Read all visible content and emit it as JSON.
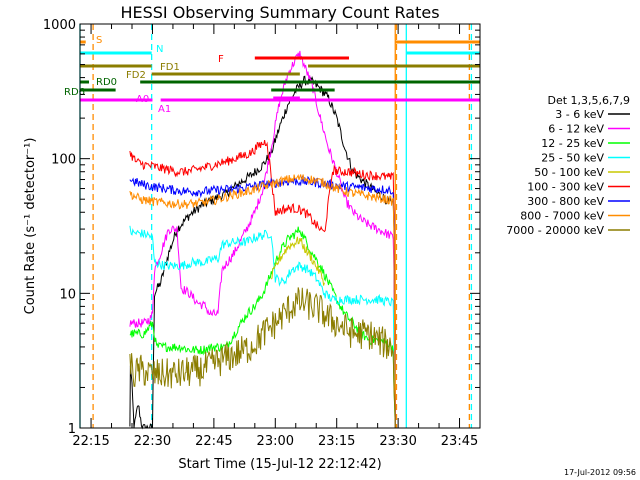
{
  "chart_data": {
    "type": "line",
    "title": "HESSI Observing Summary Count Rates",
    "xlabel": "Start Time (15-Jul-12 22:12:42)",
    "ylabel": "Count Rate (s⁻¹ detector⁻¹)",
    "yscale": "log",
    "ylim": [
      1,
      1000
    ],
    "xlim_minutes": [
      -2.7,
      95
    ],
    "x_ticks": [
      {
        "label": "22:15",
        "min": 0
      },
      {
        "label": "22:30",
        "min": 15
      },
      {
        "label": "22:45",
        "min": 30
      },
      {
        "label": "23:00",
        "min": 45
      },
      {
        "label": "23:15",
        "min": 60
      },
      {
        "label": "23:30",
        "min": 75
      },
      {
        "label": "23:45",
        "min": 90
      }
    ],
    "y_ticks": [
      {
        "label": "1",
        "value": 1
      },
      {
        "label": "10",
        "value": 10
      },
      {
        "label": "100",
        "value": 100
      },
      {
        "label": "1000",
        "value": 1000
      }
    ],
    "legend_title": "Det 1,3,5,6,7,9",
    "legend_position": "right",
    "series": [
      {
        "name": "3 - 6 keV",
        "color": "#000000",
        "points": [
          [
            9.5,
            1
          ],
          [
            9.6,
            3
          ],
          [
            10,
            2
          ],
          [
            10.5,
            1
          ],
          [
            11.5,
            1.5
          ],
          [
            12.5,
            1
          ],
          [
            13.5,
            1
          ],
          [
            14.5,
            1
          ],
          [
            15,
            1
          ],
          [
            15.5,
            10
          ],
          [
            17,
            12
          ],
          [
            19,
            20
          ],
          [
            21,
            30
          ],
          [
            24,
            38
          ],
          [
            27,
            45
          ],
          [
            30,
            50
          ],
          [
            33,
            55
          ],
          [
            36,
            65
          ],
          [
            39,
            75
          ],
          [
            42,
            90
          ],
          [
            44,
            110
          ],
          [
            46,
            170
          ],
          [
            48,
            250
          ],
          [
            50,
            320
          ],
          [
            52,
            380
          ],
          [
            54,
            370
          ],
          [
            56,
            330
          ],
          [
            58,
            280
          ],
          [
            60,
            200
          ],
          [
            62,
            120
          ],
          [
            64,
            80
          ],
          [
            66,
            70
          ],
          [
            68,
            62
          ],
          [
            70,
            55
          ],
          [
            72,
            50
          ],
          [
            73.8,
            45
          ],
          [
            74,
            30
          ],
          [
            74.3,
            1
          ]
        ]
      },
      {
        "name": "6 - 12 keV",
        "color": "#ff00ff",
        "points": [
          [
            9.5,
            6
          ],
          [
            13,
            6
          ],
          [
            14.5,
            6.5
          ],
          [
            15,
            7
          ],
          [
            15.5,
            15
          ],
          [
            17,
            20
          ],
          [
            19,
            30
          ],
          [
            21,
            30
          ],
          [
            22,
            11
          ],
          [
            24,
            10
          ],
          [
            26,
            8.5
          ],
          [
            28,
            8
          ],
          [
            29,
            7
          ],
          [
            31,
            7
          ],
          [
            32,
            15
          ],
          [
            35,
            20
          ],
          [
            38,
            30
          ],
          [
            40,
            40
          ],
          [
            42,
            60
          ],
          [
            44,
            120
          ],
          [
            46,
            260
          ],
          [
            48,
            420
          ],
          [
            50,
            550
          ],
          [
            51,
            600
          ],
          [
            52,
            500
          ],
          [
            54,
            350
          ],
          [
            56,
            200
          ],
          [
            58,
            120
          ],
          [
            60,
            80
          ],
          [
            62,
            50
          ],
          [
            64,
            40
          ],
          [
            66,
            35
          ],
          [
            68,
            32
          ],
          [
            70,
            30
          ],
          [
            72,
            28
          ],
          [
            73.8,
            26
          ],
          [
            74,
            15
          ],
          [
            74.3,
            1
          ]
        ]
      },
      {
        "name": "12 - 25 keV",
        "color": "#00ff00",
        "points": [
          [
            9.5,
            5
          ],
          [
            10,
            5
          ],
          [
            13,
            5
          ],
          [
            15,
            6
          ],
          [
            16,
            4
          ],
          [
            18,
            4
          ],
          [
            22,
            4
          ],
          [
            24,
            3.8
          ],
          [
            27,
            3.8
          ],
          [
            30,
            4
          ],
          [
            33,
            4
          ],
          [
            35,
            5
          ],
          [
            38,
            7
          ],
          [
            40,
            8
          ],
          [
            42,
            10
          ],
          [
            44,
            14
          ],
          [
            46,
            20
          ],
          [
            48,
            25
          ],
          [
            50,
            28
          ],
          [
            51,
            30
          ],
          [
            52,
            26
          ],
          [
            54,
            20
          ],
          [
            56,
            16
          ],
          [
            58,
            12
          ],
          [
            60,
            9
          ],
          [
            62,
            7
          ],
          [
            64,
            6
          ],
          [
            66,
            5
          ],
          [
            68,
            4.5
          ],
          [
            70,
            4.5
          ],
          [
            72,
            4.3
          ],
          [
            73.8,
            4
          ],
          [
            74,
            2
          ],
          [
            74.3,
            1
          ]
        ]
      },
      {
        "name": "25 - 50 keV",
        "color": "#00ffff",
        "points": [
          [
            9.5,
            30
          ],
          [
            10,
            28
          ],
          [
            12,
            28
          ],
          [
            14,
            27
          ],
          [
            15,
            26
          ],
          [
            15.5,
            17
          ],
          [
            18,
            16
          ],
          [
            22,
            16
          ],
          [
            25,
            17
          ],
          [
            28,
            17
          ],
          [
            30,
            18
          ],
          [
            31,
            18
          ],
          [
            32,
            23
          ],
          [
            35,
            24
          ],
          [
            38,
            24
          ],
          [
            40,
            26
          ],
          [
            42,
            27
          ],
          [
            44,
            28
          ],
          [
            45,
            13
          ],
          [
            47,
            12
          ],
          [
            49,
            15
          ],
          [
            51,
            16
          ],
          [
            53,
            15
          ],
          [
            55,
            13
          ],
          [
            57,
            10
          ],
          [
            59,
            9
          ],
          [
            61,
            9
          ],
          [
            63,
            9
          ],
          [
            65,
            9
          ],
          [
            67,
            9
          ],
          [
            70,
            9
          ],
          [
            73.8,
            8.5
          ],
          [
            74,
            4
          ],
          [
            74.3,
            1
          ]
        ]
      },
      {
        "name": "50 - 100 keV",
        "color": "#c8c800",
        "points": [
          [
            44,
            13
          ],
          [
            46,
            18
          ],
          [
            48,
            22
          ],
          [
            50,
            24
          ],
          [
            51,
            25
          ],
          [
            52,
            22
          ],
          [
            54,
            18
          ],
          [
            56,
            14
          ],
          [
            57,
            12
          ]
        ]
      },
      {
        "name": "100 - 300 keV",
        "color": "#ff0000",
        "points": [
          [
            9.5,
            110
          ],
          [
            11,
            95
          ],
          [
            13,
            90
          ],
          [
            15,
            88
          ],
          [
            17,
            85
          ],
          [
            19,
            83
          ],
          [
            21,
            80
          ],
          [
            23,
            80
          ],
          [
            25,
            82
          ],
          [
            27,
            85
          ],
          [
            29,
            88
          ],
          [
            31,
            92
          ],
          [
            33,
            95
          ],
          [
            35,
            100
          ],
          [
            37,
            105
          ],
          [
            39,
            110
          ],
          [
            41,
            125
          ],
          [
            43,
            135
          ],
          [
            45,
            40
          ],
          [
            47,
            42
          ],
          [
            49,
            43
          ],
          [
            51,
            42
          ],
          [
            53,
            38
          ],
          [
            55,
            32
          ],
          [
            57,
            28
          ],
          [
            59,
            82
          ],
          [
            61,
            80
          ],
          [
            63,
            80
          ],
          [
            65,
            78
          ],
          [
            67,
            76
          ],
          [
            69,
            75
          ],
          [
            71,
            74
          ],
          [
            73.8,
            72
          ],
          [
            74,
            40
          ],
          [
            74.3,
            1
          ]
        ]
      },
      {
        "name": "300 - 800 keV",
        "color": "#0000ff",
        "points": [
          [
            9.5,
            70
          ],
          [
            12,
            65
          ],
          [
            15,
            62
          ],
          [
            18,
            60
          ],
          [
            21,
            58
          ],
          [
            24,
            57
          ],
          [
            27,
            57
          ],
          [
            30,
            58
          ],
          [
            33,
            59
          ],
          [
            36,
            60
          ],
          [
            39,
            62
          ],
          [
            42,
            64
          ],
          [
            45,
            66
          ],
          [
            48,
            68
          ],
          [
            51,
            68
          ],
          [
            54,
            67
          ],
          [
            57,
            65
          ],
          [
            60,
            63
          ],
          [
            63,
            62
          ],
          [
            66,
            61
          ],
          [
            69,
            60
          ],
          [
            72,
            59
          ],
          [
            73.8,
            58
          ],
          [
            74,
            30
          ],
          [
            74.3,
            1
          ]
        ]
      },
      {
        "name": "800 - 7000 keV",
        "color": "#ff8c00",
        "points": [
          [
            9.5,
            55
          ],
          [
            12,
            50
          ],
          [
            15,
            48
          ],
          [
            18,
            47
          ],
          [
            21,
            46
          ],
          [
            24,
            46
          ],
          [
            27,
            47
          ],
          [
            30,
            49
          ],
          [
            33,
            52
          ],
          [
            36,
            55
          ],
          [
            39,
            58
          ],
          [
            42,
            62
          ],
          [
            45,
            66
          ],
          [
            48,
            70
          ],
          [
            51,
            72
          ],
          [
            54,
            70
          ],
          [
            57,
            66
          ],
          [
            60,
            60
          ],
          [
            63,
            56
          ],
          [
            66,
            54
          ],
          [
            69,
            52
          ],
          [
            72,
            50
          ],
          [
            73.8,
            48
          ],
          [
            74,
            25
          ],
          [
            74.3,
            1
          ]
        ]
      },
      {
        "name": "7000 - 20000 keV",
        "color": "#8b7d00",
        "points": [
          [
            9.5,
            3
          ],
          [
            10.5,
            2.5
          ],
          [
            12,
            2.7
          ],
          [
            15,
            2.5
          ],
          [
            18,
            2.5
          ],
          [
            21,
            2.5
          ],
          [
            24,
            2.6
          ],
          [
            27,
            2.7
          ],
          [
            30,
            3
          ],
          [
            33,
            3.3
          ],
          [
            36,
            3.6
          ],
          [
            39,
            4
          ],
          [
            42,
            5
          ],
          [
            45,
            6
          ],
          [
            48,
            7.5
          ],
          [
            50,
            8.5
          ],
          [
            52,
            8.5
          ],
          [
            54,
            8
          ],
          [
            56,
            7.5
          ],
          [
            58,
            6.5
          ],
          [
            60,
            6
          ],
          [
            62,
            5.5
          ],
          [
            64,
            5
          ],
          [
            66,
            5
          ],
          [
            68,
            5
          ],
          [
            70,
            4.5
          ],
          [
            72,
            4.2
          ],
          [
            73.8,
            4
          ],
          [
            74,
            2
          ],
          [
            74.3,
            1
          ]
        ]
      }
    ],
    "state_flags": [
      {
        "label": "S",
        "color": "#ff8c00",
        "level": 1,
        "spans": [
          [
            -2.7,
            -1.3
          ],
          [
            74.3,
            95
          ]
        ]
      },
      {
        "label": "N",
        "color": "#00ffff",
        "level": 2,
        "spans": [
          [
            -2.7,
            14.8
          ],
          [
            77,
            95
          ]
        ]
      },
      {
        "label": "F",
        "color": "#ff0000",
        "level": 3,
        "spans": [
          [
            40,
            63
          ]
        ]
      },
      {
        "label": "FD1",
        "color": "#8b7d00",
        "level": 4,
        "spans": [
          [
            -2.7,
            14.8
          ],
          [
            53,
            95
          ]
        ]
      },
      {
        "label": "FD2",
        "color": "#8b7d00",
        "level": 5,
        "spans": [
          [
            14.8,
            51
          ]
        ]
      },
      {
        "label": "RD0",
        "color": "#006400",
        "level": 6,
        "spans": [
          [
            -2.7,
            -0.5
          ],
          [
            12,
            95
          ]
        ]
      },
      {
        "label": "RD6",
        "color": "#006400",
        "level": 7,
        "spans": [
          [
            -2.7,
            6
          ],
          [
            44,
            59.5
          ]
        ]
      },
      {
        "label": "A0",
        "color": "#ff00ff",
        "level": 8,
        "spans": [
          [
            44.5,
            51
          ]
        ]
      },
      {
        "label": "A1",
        "color": "#ff00ff",
        "level": 9,
        "spans": [
          [
            -2.7,
            15
          ],
          [
            17,
            95
          ]
        ]
      }
    ],
    "markers": [
      {
        "color": "#00ffff",
        "style": "solid",
        "min": -2.7
      },
      {
        "color": "#ff8c00",
        "style": "dashed",
        "min": 0.5
      },
      {
        "color": "#00ffff",
        "style": "dashed",
        "min": 14.8
      },
      {
        "color": "#ff8c00",
        "style": "solid",
        "min": 74.3
      },
      {
        "color": "#ff8c00",
        "style": "dashed",
        "min": 74.6
      },
      {
        "color": "#00ffff",
        "style": "solid",
        "min": 77.0
      },
      {
        "color": "#ff8c00",
        "style": "dashed",
        "min": 92.4
      },
      {
        "color": "#00ffff",
        "style": "dashed",
        "min": 92.9
      }
    ],
    "timestamp": "17-Jul-2012 09:56"
  }
}
